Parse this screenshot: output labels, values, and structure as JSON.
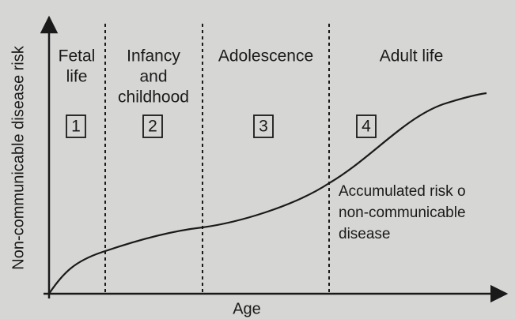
{
  "axes": {
    "y_label": "Non-communicable disease risk",
    "x_label": "Age"
  },
  "stages": [
    {
      "lines": [
        "Fetal",
        "life"
      ],
      "number": "1"
    },
    {
      "lines": [
        "Infancy",
        "and",
        "childhood"
      ],
      "number": "2"
    },
    {
      "lines": [
        "Adolescence"
      ],
      "number": "3"
    },
    {
      "lines": [
        "Adult life"
      ],
      "number": "4"
    }
  ],
  "annotation": {
    "lines": [
      "Accumulated risk o",
      "non-communicable",
      "disease"
    ]
  }
}
